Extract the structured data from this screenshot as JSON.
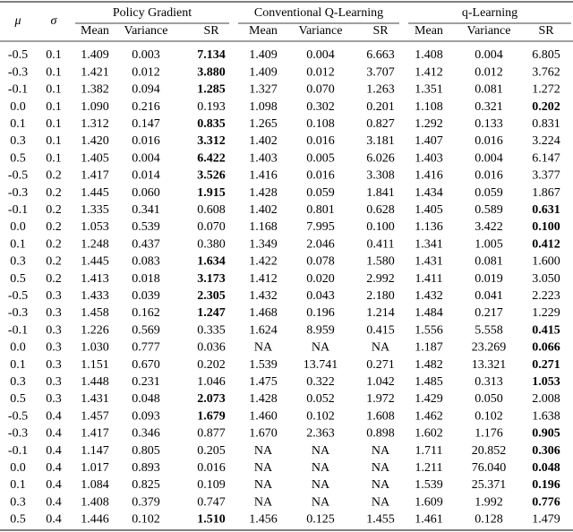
{
  "header": {
    "col1": "μ",
    "col2": "σ",
    "groups": [
      "Policy Gradient",
      "Conventional Q-Learning",
      "q-Learning"
    ],
    "subcols": [
      "Mean",
      "Variance",
      "SR",
      "Mean",
      "Variance",
      "SR",
      "Mean",
      "Variance",
      "SR"
    ]
  },
  "table": {
    "bold_col": [
      4,
      4,
      4,
      10,
      4,
      4,
      4,
      4,
      4,
      10,
      10,
      10,
      4,
      4,
      4,
      4,
      10,
      10,
      10,
      10,
      4,
      4,
      10,
      10,
      10,
      10,
      10,
      4
    ],
    "rows": [
      [
        "-0.5",
        "0.1",
        "1.409",
        "0.003",
        "7.134",
        "1.409",
        "0.004",
        "6.663",
        "1.408",
        "0.004",
        "6.805"
      ],
      [
        "-0.3",
        "0.1",
        "1.421",
        "0.012",
        "3.880",
        "1.409",
        "0.012",
        "3.707",
        "1.412",
        "0.012",
        "3.762"
      ],
      [
        "-0.1",
        "0.1",
        "1.382",
        "0.094",
        "1.285",
        "1.327",
        "0.070",
        "1.263",
        "1.351",
        "0.081",
        "1.272"
      ],
      [
        "0.0",
        "0.1",
        "1.090",
        "0.216",
        "0.193",
        "1.098",
        "0.302",
        "0.201",
        "1.108",
        "0.321",
        "0.202"
      ],
      [
        "0.1",
        "0.1",
        "1.312",
        "0.147",
        "0.835",
        "1.265",
        "0.108",
        "0.827",
        "1.292",
        "0.133",
        "0.831"
      ],
      [
        "0.3",
        "0.1",
        "1.420",
        "0.016",
        "3.312",
        "1.402",
        "0.016",
        "3.181",
        "1.407",
        "0.016",
        "3.224"
      ],
      [
        "0.5",
        "0.1",
        "1.405",
        "0.004",
        "6.422",
        "1.403",
        "0.005",
        "6.026",
        "1.403",
        "0.004",
        "6.147"
      ],
      [
        "-0.5",
        "0.2",
        "1.417",
        "0.014",
        "3.526",
        "1.416",
        "0.016",
        "3.308",
        "1.416",
        "0.016",
        "3.377"
      ],
      [
        "-0.3",
        "0.2",
        "1.445",
        "0.060",
        "1.915",
        "1.428",
        "0.059",
        "1.841",
        "1.434",
        "0.059",
        "1.867"
      ],
      [
        "-0.1",
        "0.2",
        "1.335",
        "0.341",
        "0.608",
        "1.402",
        "0.801",
        "0.628",
        "1.405",
        "0.589",
        "0.631"
      ],
      [
        "0.0",
        "0.2",
        "1.053",
        "0.539",
        "0.070",
        "1.168",
        "7.995",
        "0.100",
        "1.136",
        "3.422",
        "0.100"
      ],
      [
        "0.1",
        "0.2",
        "1.248",
        "0.437",
        "0.380",
        "1.349",
        "2.046",
        "0.411",
        "1.341",
        "1.005",
        "0.412"
      ],
      [
        "0.3",
        "0.2",
        "1.445",
        "0.083",
        "1.634",
        "1.422",
        "0.078",
        "1.580",
        "1.431",
        "0.081",
        "1.600"
      ],
      [
        "0.5",
        "0.2",
        "1.413",
        "0.018",
        "3.173",
        "1.412",
        "0.020",
        "2.992",
        "1.411",
        "0.019",
        "3.050"
      ],
      [
        "-0.5",
        "0.3",
        "1.433",
        "0.039",
        "2.305",
        "1.432",
        "0.043",
        "2.180",
        "1.432",
        "0.041",
        "2.223"
      ],
      [
        "-0.3",
        "0.3",
        "1.458",
        "0.162",
        "1.247",
        "1.468",
        "0.196",
        "1.214",
        "1.484",
        "0.217",
        "1.229"
      ],
      [
        "-0.1",
        "0.3",
        "1.226",
        "0.569",
        "0.335",
        "1.624",
        "8.959",
        "0.415",
        "1.556",
        "5.558",
        "0.415"
      ],
      [
        "0.0",
        "0.3",
        "1.030",
        "0.777",
        "0.036",
        "NA",
        "NA",
        "NA",
        "1.187",
        "23.269",
        "0.066"
      ],
      [
        "0.1",
        "0.3",
        "1.151",
        "0.670",
        "0.202",
        "1.539",
        "13.741",
        "0.271",
        "1.482",
        "13.321",
        "0.271"
      ],
      [
        "0.3",
        "0.3",
        "1.448",
        "0.231",
        "1.046",
        "1.475",
        "0.322",
        "1.042",
        "1.485",
        "0.313",
        "1.053"
      ],
      [
        "0.5",
        "0.3",
        "1.431",
        "0.048",
        "2.073",
        "1.428",
        "0.052",
        "1.972",
        "1.429",
        "0.050",
        "2.008"
      ],
      [
        "-0.5",
        "0.4",
        "1.457",
        "0.093",
        "1.679",
        "1.460",
        "0.102",
        "1.608",
        "1.462",
        "0.102",
        "1.638"
      ],
      [
        "-0.3",
        "0.4",
        "1.417",
        "0.346",
        "0.877",
        "1.670",
        "2.363",
        "0.898",
        "1.602",
        "1.176",
        "0.905"
      ],
      [
        "-0.1",
        "0.4",
        "1.147",
        "0.805",
        "0.205",
        "NA",
        "NA",
        "NA",
        "1.711",
        "20.852",
        "0.306"
      ],
      [
        "0.0",
        "0.4",
        "1.017",
        "0.893",
        "0.016",
        "NA",
        "NA",
        "NA",
        "1.211",
        "76.040",
        "0.048"
      ],
      [
        "0.1",
        "0.4",
        "1.084",
        "0.825",
        "0.109",
        "NA",
        "NA",
        "NA",
        "1.539",
        "25.371",
        "0.196"
      ],
      [
        "0.3",
        "0.4",
        "1.408",
        "0.379",
        "0.747",
        "NA",
        "NA",
        "NA",
        "1.609",
        "1.992",
        "0.776"
      ],
      [
        "0.5",
        "0.4",
        "1.446",
        "0.102",
        "1.510",
        "1.456",
        "0.125",
        "1.455",
        "1.461",
        "0.128",
        "1.479"
      ]
    ]
  }
}
